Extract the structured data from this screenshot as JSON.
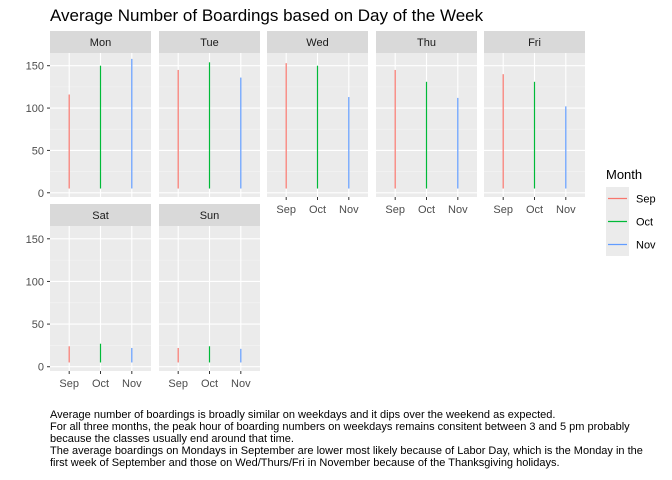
{
  "chart_data": {
    "type": "bar",
    "title": "Average Number of Boardings based on Day of the Week",
    "xlabel": "",
    "ylabel": "",
    "ylim": [
      0,
      165
    ],
    "y_ticks": [
      0,
      50,
      100,
      150
    ],
    "categories": [
      "Sep",
      "Oct",
      "Nov"
    ],
    "series_colors": {
      "Sep": "#F8766D",
      "Oct": "#00BA38",
      "Nov": "#619CFF"
    },
    "legend": {
      "title": "Month",
      "placement": "right",
      "entries": [
        {
          "label": "Sep",
          "color": "#F8766D"
        },
        {
          "label": "Oct",
          "color": "#00BA38"
        },
        {
          "label": "Nov",
          "color": "#619CFF"
        }
      ]
    },
    "panels": [
      {
        "day": "Mon",
        "values": [
          116,
          150,
          158
        ]
      },
      {
        "day": "Tue",
        "values": [
          145,
          154,
          136
        ]
      },
      {
        "day": "Wed",
        "values": [
          153,
          150,
          113
        ]
      },
      {
        "day": "Thu",
        "values": [
          145,
          131,
          112
        ]
      },
      {
        "day": "Fri",
        "values": [
          140,
          131,
          102
        ]
      },
      {
        "day": "Sat",
        "values": [
          24,
          27,
          22
        ]
      },
      {
        "day": "Sun",
        "values": [
          22,
          24,
          21
        ]
      }
    ],
    "grid": true,
    "facet_layout": "2 rows x 5 columns"
  },
  "caption": {
    "lines": [
      "Average number of boardings is broadly similar on weekdays and it dips over the weekend as expected.",
      "For all three months, the peak hour of boarding numbers on weekdays remains consitent between 3 and 5 pm probably",
      "because the classes usually end around that time.",
      "The average boardings on Mondays in September are lower most likely because of Labor Day, which is the Monday in the",
      "first week of September and those on Wed/Thurs/Fri in November because of the Thanksgiving holidays."
    ]
  }
}
